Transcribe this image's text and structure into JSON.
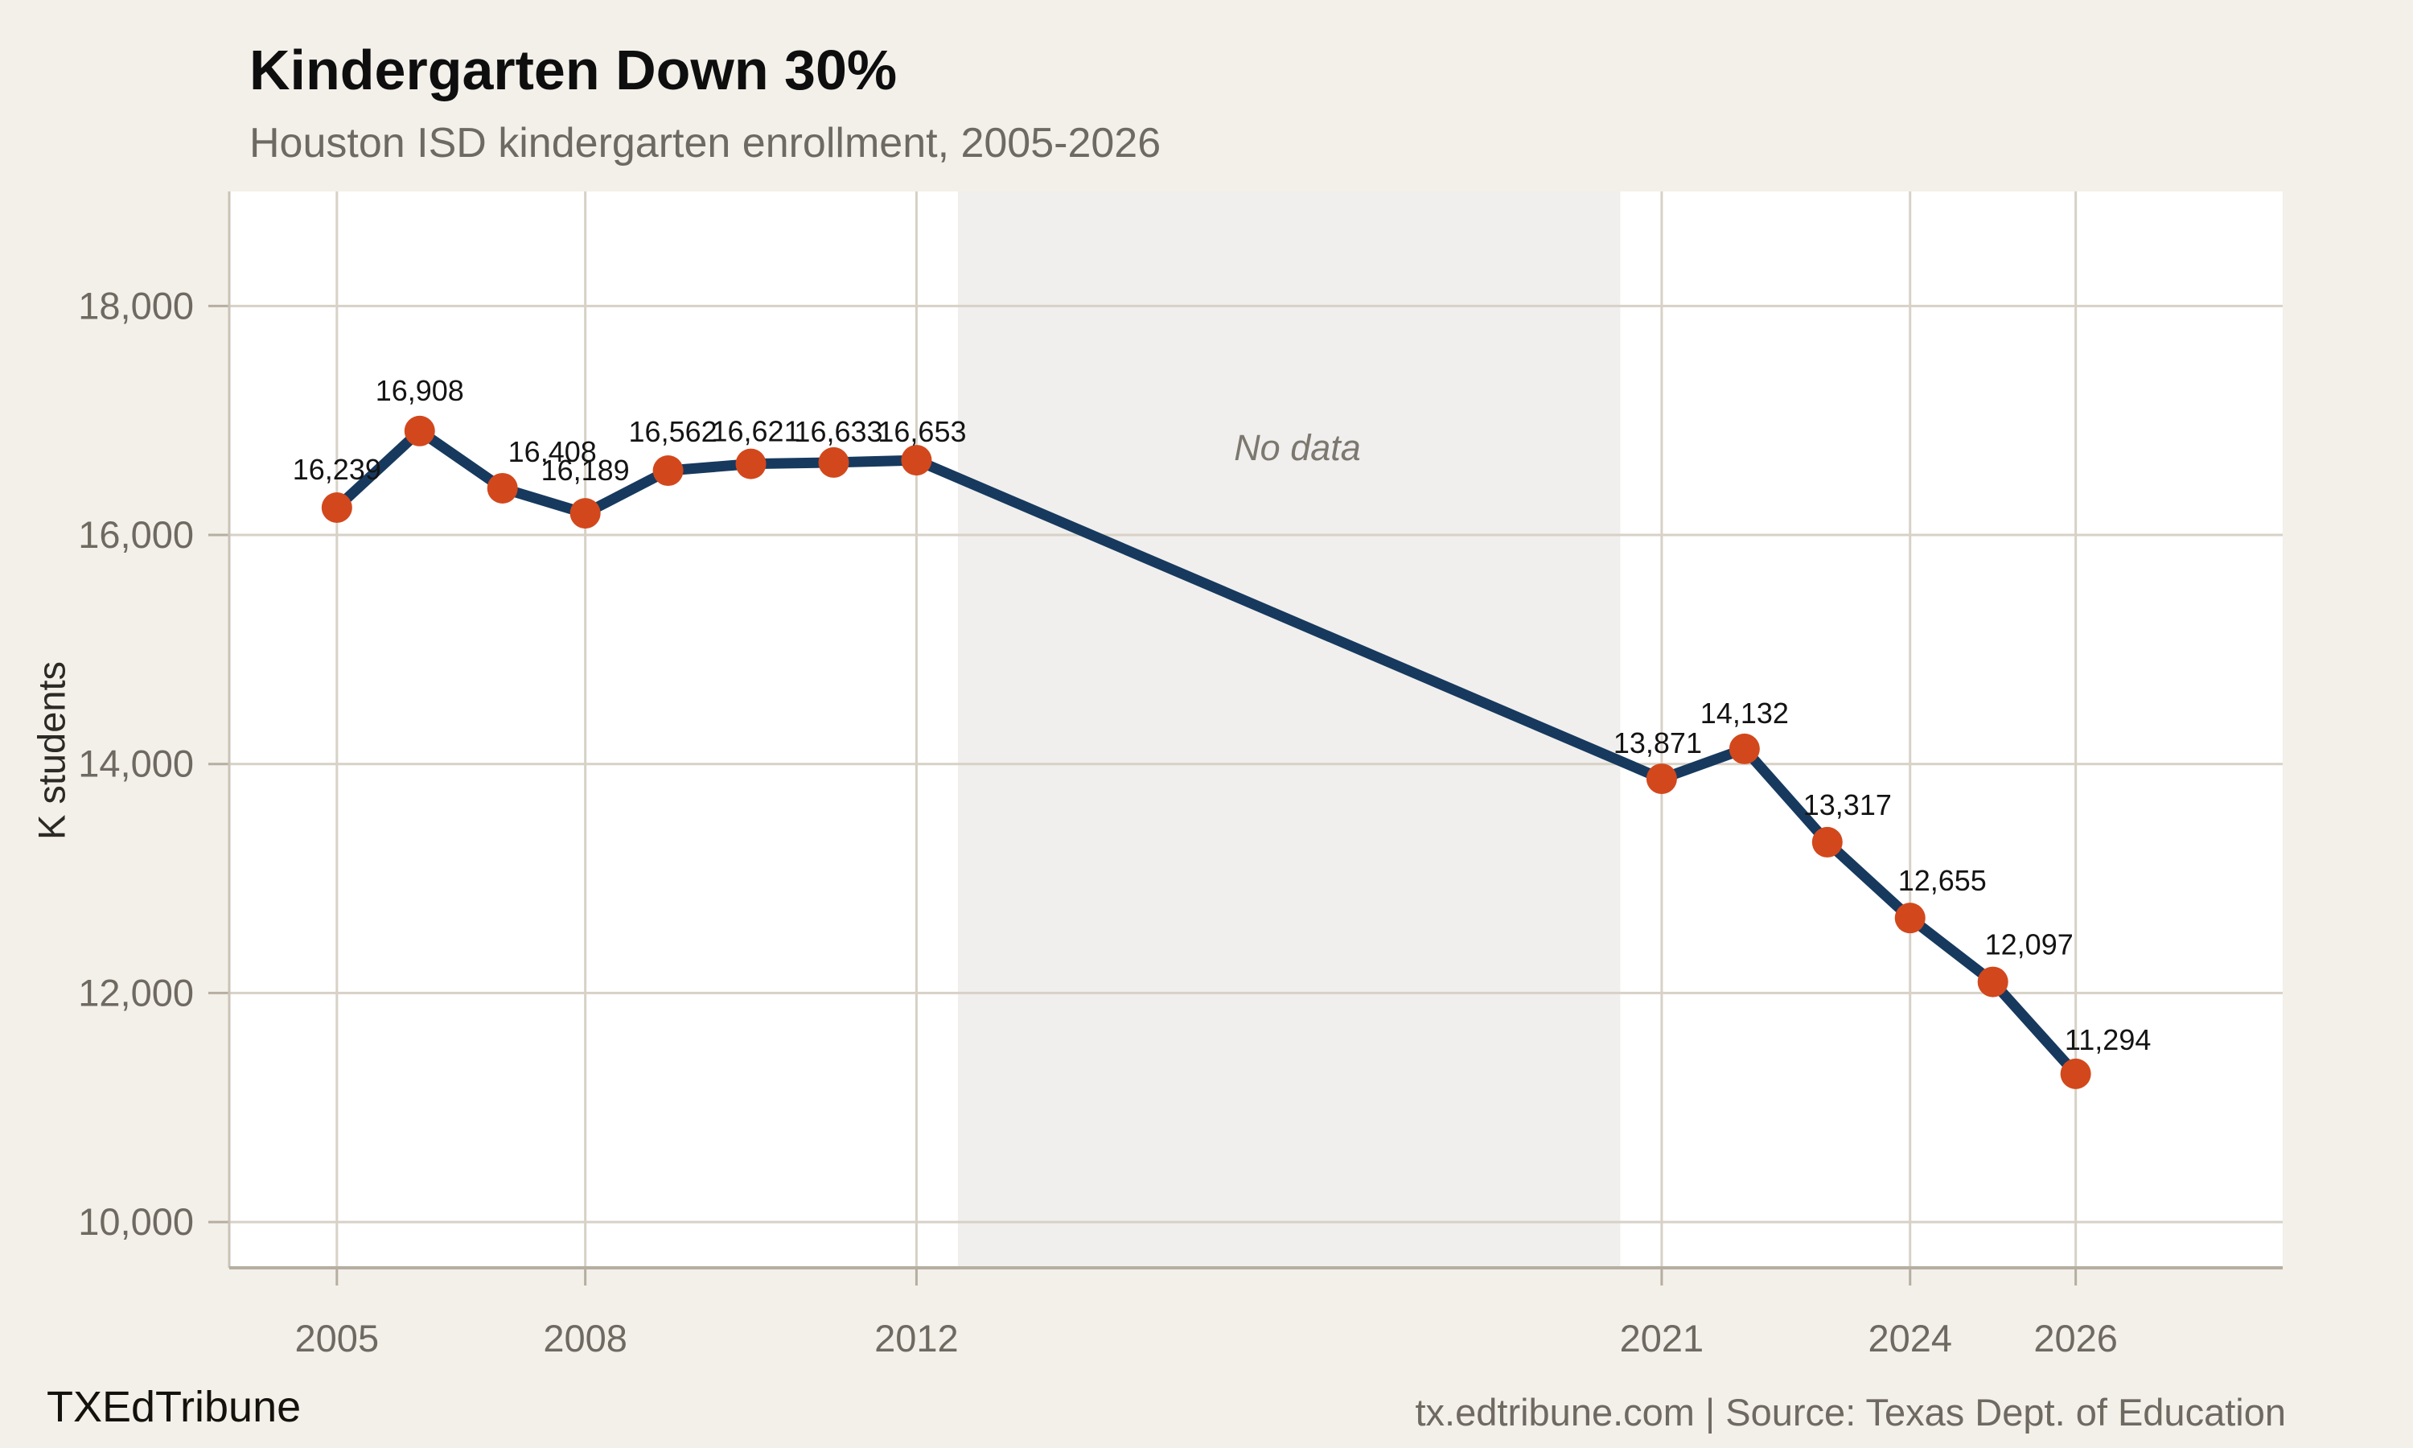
{
  "page": {
    "background": "#f3efe9"
  },
  "header": {
    "title": "Kindergarten Down 30%",
    "subtitle": "Houston ISD kindergarten enrollment, 2005-2026"
  },
  "footer": {
    "brand": "TXEdTribune",
    "attribution": "tx.edtribune.com | Source: Texas Dept. of Education"
  },
  "chart_data": {
    "type": "line",
    "title": "Kindergarten Down 30%",
    "subtitle": "Houston ISD kindergarten enrollment, 2005-2026",
    "ylabel": "K students",
    "xlabel": "",
    "series": [
      {
        "name": "Houston ISD kindergarten enrollment",
        "points": [
          {
            "year": 2005,
            "value": 16239
          },
          {
            "year": 2006,
            "value": 16908
          },
          {
            "year": 2007,
            "value": 16408
          },
          {
            "year": 2008,
            "value": 16189
          },
          {
            "year": 2009,
            "value": 16562
          },
          {
            "year": 2010,
            "value": 16621
          },
          {
            "year": 2011,
            "value": 16633
          },
          {
            "year": 2012,
            "value": 16653
          },
          {
            "year": 2021,
            "value": 13871
          },
          {
            "year": 2022,
            "value": 14132
          },
          {
            "year": 2023,
            "value": 13317
          },
          {
            "year": 2024,
            "value": 12655
          },
          {
            "year": 2025,
            "value": 12097
          },
          {
            "year": 2026,
            "value": 11294
          }
        ]
      }
    ],
    "no_data": {
      "label": "No data",
      "from_year": 2012.5,
      "to_year": 2020.5
    },
    "x_ticks": [
      2005,
      2008,
      2012,
      2021,
      2024,
      2026
    ],
    "y_ticks": [
      10000,
      12000,
      14000,
      16000,
      18000
    ],
    "xlim": [
      2003.7,
      2028.5
    ],
    "ylim": [
      9600,
      19000
    ],
    "grid": true,
    "legend_position": "none",
    "colors": {
      "line": "#17395e",
      "marker": "#d2481c",
      "grid": "#d7d1c6",
      "axis": "#b5aea1",
      "plot_bg": "#ffffff",
      "no_data_bg": "#f0efed",
      "data_label": "#141414",
      "tick_label": "#6e6a62",
      "no_data_text": "#7c7870"
    }
  }
}
